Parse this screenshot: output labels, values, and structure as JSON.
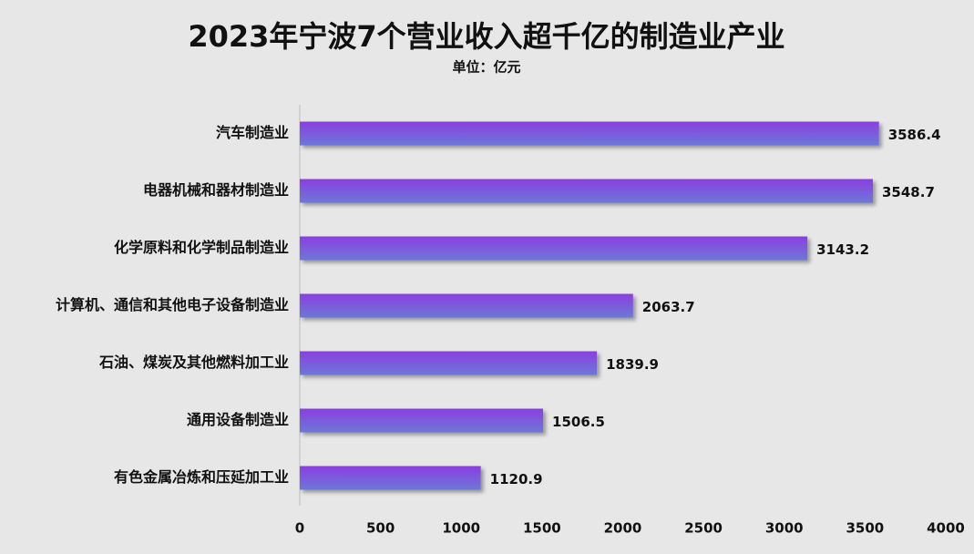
{
  "chart_data": {
    "type": "barh",
    "title": "2023年宁波7个营业收入超千亿的制造业产业",
    "subtitle": "单位：亿元",
    "categories": [
      "汽车制造业",
      "电器机械和器材制造业",
      "化学原料和化学制品制造业",
      "计算机、通信和其他电子设备制造业",
      "石油、煤炭及其他燃料加工业",
      "通用设备制造业",
      "有色金属冶炼和压延加工业"
    ],
    "values": [
      3586.4,
      3548.7,
      3143.2,
      2063.7,
      1839.9,
      1506.5,
      1120.9
    ],
    "color": "#8a3ee0",
    "xlim": [
      0,
      4000
    ],
    "xticks": [
      0,
      500,
      1000,
      1500,
      2000,
      2500,
      3000,
      3500,
      4000
    ],
    "grid": false
  }
}
